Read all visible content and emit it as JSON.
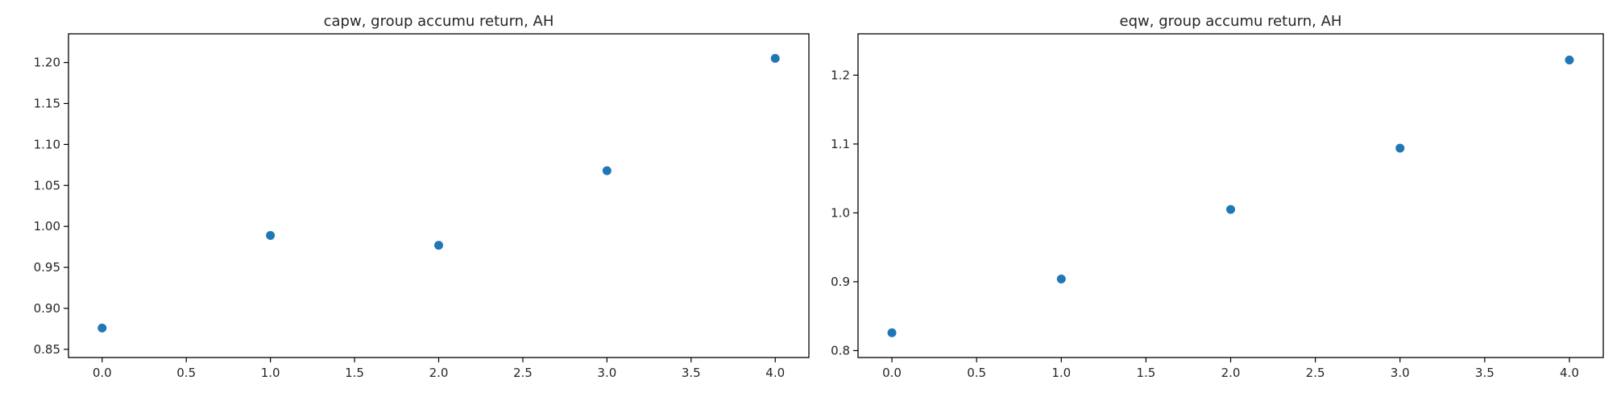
{
  "chart_data": [
    {
      "type": "scatter",
      "title": "capw, group accumu return, AH",
      "xlabel": "",
      "ylabel": "",
      "x": [
        0,
        1,
        2,
        3,
        4
      ],
      "y": [
        0.876,
        0.989,
        0.977,
        1.068,
        1.205
      ],
      "xlim": [
        -0.2,
        4.2
      ],
      "ylim": [
        0.84,
        1.235
      ],
      "xticks": [
        "0.0",
        "0.5",
        "1.0",
        "1.5",
        "2.0",
        "2.5",
        "3.0",
        "3.5",
        "4.0"
      ],
      "xtick_values": [
        0,
        0.5,
        1,
        1.5,
        2,
        2.5,
        3,
        3.5,
        4
      ],
      "yticks": [
        "0.85",
        "0.90",
        "0.95",
        "1.00",
        "1.05",
        "1.10",
        "1.15",
        "1.20"
      ],
      "ytick_values": [
        0.85,
        0.9,
        0.95,
        1.0,
        1.05,
        1.1,
        1.15,
        1.2
      ],
      "grid": false,
      "color": "#1f77b4"
    },
    {
      "type": "scatter",
      "title": "eqw, group accumu return, AH",
      "xlabel": "",
      "ylabel": "",
      "x": [
        0,
        1,
        2,
        3,
        4
      ],
      "y": [
        0.826,
        0.904,
        1.005,
        1.094,
        1.222
      ],
      "xlim": [
        -0.2,
        4.2
      ],
      "ylim": [
        0.79,
        1.26
      ],
      "xticks": [
        "0.0",
        "0.5",
        "1.0",
        "1.5",
        "2.0",
        "2.5",
        "3.0",
        "3.5",
        "4.0"
      ],
      "xtick_values": [
        0,
        0.5,
        1,
        1.5,
        2,
        2.5,
        3,
        3.5,
        4
      ],
      "yticks": [
        "0.8",
        "0.9",
        "1.0",
        "1.1",
        "1.2"
      ],
      "ytick_values": [
        0.8,
        0.9,
        1.0,
        1.1,
        1.2
      ],
      "grid": false,
      "color": "#1f77b4"
    }
  ]
}
